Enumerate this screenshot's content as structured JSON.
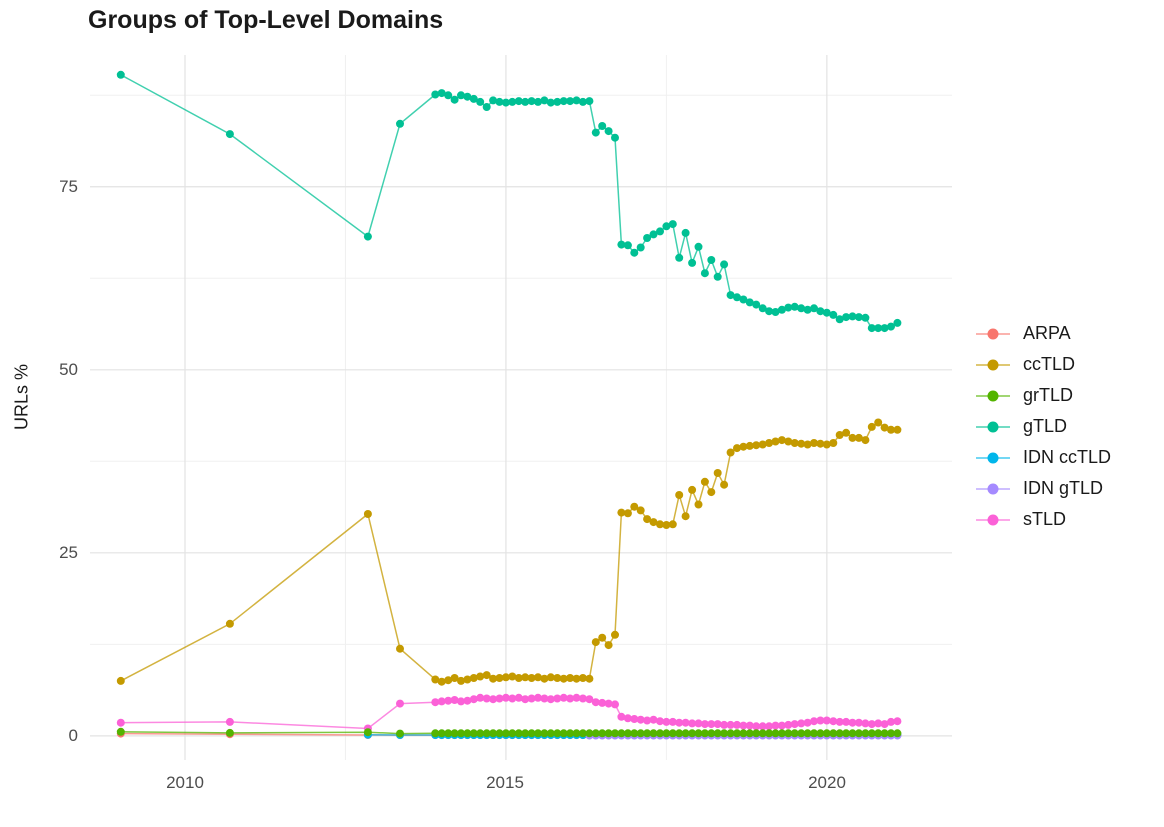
{
  "chart_data": {
    "type": "line",
    "title": "Groups of Top-Level Domains",
    "xlabel": "",
    "ylabel": "URLs %",
    "x_ticks": [
      2010,
      2015,
      2020
    ],
    "x_tick_labels": [
      "2010",
      "2015",
      "2020"
    ],
    "y_ticks": [
      0,
      25,
      50,
      75
    ],
    "y_tick_labels": [
      "0",
      "25",
      "50",
      "75"
    ],
    "xlim": [
      2008.52,
      2021.95
    ],
    "ylim": [
      -3.3,
      93.0
    ],
    "grid": {
      "x_minor": [
        2012.5,
        2017.5
      ],
      "y_minor": [
        12.5,
        37.5,
        62.5,
        87.5
      ],
      "major_color": "#e3e3e3",
      "minor_color": "#f0f0f0"
    },
    "legend_position": "right",
    "draw_order": [
      0,
      4,
      5,
      1,
      3,
      6,
      2
    ],
    "series": [
      {
        "name": "ARPA",
        "color": "#F8766D",
        "points": [
          [
            2009.0,
            0.3
          ],
          [
            2010.7,
            0.22
          ],
          [
            2012.85,
            0.12
          ],
          [
            2013.35,
            0.1
          ]
        ],
        "flat": {
          "from": 2013.9,
          "to": 2021.1,
          "step": 0.1,
          "y": 0.1
        }
      },
      {
        "name": "ccTLD",
        "color": "#C49A00",
        "points": [
          [
            2009.0,
            7.5
          ],
          [
            2010.7,
            15.3
          ],
          [
            2012.85,
            30.3
          ],
          [
            2013.35,
            11.9
          ],
          [
            2013.9,
            7.7
          ],
          [
            2014.0,
            7.4
          ],
          [
            2014.1,
            7.6
          ],
          [
            2014.2,
            7.9
          ],
          [
            2014.3,
            7.5
          ],
          [
            2014.4,
            7.7
          ],
          [
            2014.5,
            7.9
          ],
          [
            2014.6,
            8.1
          ],
          [
            2014.7,
            8.3
          ],
          [
            2014.8,
            7.8
          ],
          [
            2014.9,
            7.9
          ],
          [
            2015.0,
            8.0
          ],
          [
            2015.1,
            8.1
          ],
          [
            2015.2,
            7.9
          ],
          [
            2015.3,
            8.0
          ],
          [
            2015.4,
            7.9
          ],
          [
            2015.5,
            8.0
          ],
          [
            2015.6,
            7.8
          ],
          [
            2015.7,
            8.0
          ],
          [
            2015.8,
            7.9
          ],
          [
            2015.9,
            7.8
          ],
          [
            2016.0,
            7.9
          ],
          [
            2016.1,
            7.8
          ],
          [
            2016.2,
            7.9
          ],
          [
            2016.3,
            7.8
          ],
          [
            2016.4,
            12.8
          ],
          [
            2016.5,
            13.4
          ],
          [
            2016.6,
            12.4
          ],
          [
            2016.7,
            13.8
          ],
          [
            2016.8,
            30.5
          ],
          [
            2016.9,
            30.4
          ],
          [
            2017.0,
            31.3
          ],
          [
            2017.1,
            30.8
          ],
          [
            2017.2,
            29.6
          ],
          [
            2017.3,
            29.2
          ],
          [
            2017.4,
            28.9
          ],
          [
            2017.5,
            28.8
          ],
          [
            2017.6,
            28.9
          ],
          [
            2017.7,
            32.9
          ],
          [
            2017.8,
            30.0
          ],
          [
            2017.9,
            33.6
          ],
          [
            2018.0,
            31.6
          ],
          [
            2018.1,
            34.7
          ],
          [
            2018.2,
            33.3
          ],
          [
            2018.3,
            35.9
          ],
          [
            2018.4,
            34.3
          ],
          [
            2018.5,
            38.7
          ],
          [
            2018.6,
            39.3
          ],
          [
            2018.7,
            39.5
          ],
          [
            2018.8,
            39.6
          ],
          [
            2018.9,
            39.7
          ],
          [
            2019.0,
            39.8
          ],
          [
            2019.1,
            40.0
          ],
          [
            2019.2,
            40.2
          ],
          [
            2019.3,
            40.4
          ],
          [
            2019.4,
            40.2
          ],
          [
            2019.5,
            40.0
          ],
          [
            2019.6,
            39.9
          ],
          [
            2019.7,
            39.8
          ],
          [
            2019.8,
            40.0
          ],
          [
            2019.9,
            39.9
          ],
          [
            2020.0,
            39.8
          ],
          [
            2020.1,
            40.0
          ],
          [
            2020.2,
            41.1
          ],
          [
            2020.3,
            41.4
          ],
          [
            2020.4,
            40.7
          ],
          [
            2020.5,
            40.7
          ],
          [
            2020.6,
            40.4
          ],
          [
            2020.7,
            42.2
          ],
          [
            2020.8,
            42.8
          ],
          [
            2020.9,
            42.1
          ],
          [
            2021.0,
            41.8
          ],
          [
            2021.1,
            41.8
          ]
        ]
      },
      {
        "name": "grTLD",
        "color": "#53B400",
        "points": [
          [
            2009.0,
            0.55
          ],
          [
            2010.7,
            0.4
          ],
          [
            2012.85,
            0.5
          ],
          [
            2013.35,
            0.3
          ]
        ],
        "flat": {
          "from": 2013.9,
          "to": 2021.1,
          "step": 0.1,
          "y": 0.35
        }
      },
      {
        "name": "gTLD",
        "color": "#00C094",
        "points": [
          [
            2009.0,
            90.3
          ],
          [
            2010.7,
            82.2
          ],
          [
            2012.85,
            68.2
          ],
          [
            2013.35,
            83.6
          ],
          [
            2013.9,
            87.6
          ],
          [
            2014.0,
            87.8
          ],
          [
            2014.1,
            87.5
          ],
          [
            2014.2,
            86.9
          ],
          [
            2014.3,
            87.5
          ],
          [
            2014.4,
            87.3
          ],
          [
            2014.5,
            87.0
          ],
          [
            2014.6,
            86.6
          ],
          [
            2014.7,
            85.9
          ],
          [
            2014.8,
            86.8
          ],
          [
            2014.9,
            86.6
          ],
          [
            2015.0,
            86.5
          ],
          [
            2015.1,
            86.6
          ],
          [
            2015.2,
            86.7
          ],
          [
            2015.3,
            86.6
          ],
          [
            2015.4,
            86.7
          ],
          [
            2015.5,
            86.6
          ],
          [
            2015.6,
            86.8
          ],
          [
            2015.7,
            86.5
          ],
          [
            2015.8,
            86.6
          ],
          [
            2015.9,
            86.7
          ],
          [
            2016.0,
            86.7
          ],
          [
            2016.1,
            86.8
          ],
          [
            2016.2,
            86.6
          ],
          [
            2016.3,
            86.7
          ],
          [
            2016.4,
            82.4
          ],
          [
            2016.5,
            83.3
          ],
          [
            2016.6,
            82.6
          ],
          [
            2016.7,
            81.7
          ],
          [
            2016.8,
            67.1
          ],
          [
            2016.9,
            67.0
          ],
          [
            2017.0,
            66.0
          ],
          [
            2017.1,
            66.7
          ],
          [
            2017.2,
            68.0
          ],
          [
            2017.3,
            68.5
          ],
          [
            2017.4,
            68.9
          ],
          [
            2017.5,
            69.6
          ],
          [
            2017.6,
            69.9
          ],
          [
            2017.7,
            65.3
          ],
          [
            2017.8,
            68.7
          ],
          [
            2017.9,
            64.6
          ],
          [
            2018.0,
            66.8
          ],
          [
            2018.1,
            63.2
          ],
          [
            2018.2,
            65.0
          ],
          [
            2018.3,
            62.7
          ],
          [
            2018.4,
            64.4
          ],
          [
            2018.5,
            60.2
          ],
          [
            2018.6,
            59.9
          ],
          [
            2018.7,
            59.6
          ],
          [
            2018.8,
            59.2
          ],
          [
            2018.9,
            58.9
          ],
          [
            2019.0,
            58.4
          ],
          [
            2019.1,
            58.0
          ],
          [
            2019.2,
            57.9
          ],
          [
            2019.3,
            58.2
          ],
          [
            2019.4,
            58.5
          ],
          [
            2019.5,
            58.6
          ],
          [
            2019.6,
            58.4
          ],
          [
            2019.7,
            58.2
          ],
          [
            2019.8,
            58.4
          ],
          [
            2019.9,
            58.0
          ],
          [
            2020.0,
            57.8
          ],
          [
            2020.1,
            57.5
          ],
          [
            2020.2,
            56.9
          ],
          [
            2020.3,
            57.2
          ],
          [
            2020.4,
            57.3
          ],
          [
            2020.5,
            57.2
          ],
          [
            2020.6,
            57.1
          ],
          [
            2020.7,
            55.7
          ],
          [
            2020.8,
            55.7
          ],
          [
            2020.9,
            55.7
          ],
          [
            2021.0,
            55.9
          ],
          [
            2021.1,
            56.4
          ]
        ]
      },
      {
        "name": "IDN ccTLD",
        "color": "#00B6EB",
        "points": [
          [
            2012.85,
            0.15
          ],
          [
            2013.35,
            0.12
          ]
        ],
        "flat": {
          "from": 2013.9,
          "to": 2021.1,
          "step": 0.1,
          "y": 0.12
        }
      },
      {
        "name": "IDN gTLD",
        "color": "#A58AFF",
        "points": [],
        "flat": {
          "from": 2016.3,
          "to": 2021.1,
          "step": 0.1,
          "y": 0.05
        }
      },
      {
        "name": "sTLD",
        "color": "#FB61D7",
        "points": [
          [
            2009.0,
            1.8
          ],
          [
            2010.7,
            1.9
          ],
          [
            2012.85,
            1.0
          ],
          [
            2013.35,
            4.4
          ],
          [
            2013.9,
            4.6
          ],
          [
            2014.0,
            4.7
          ],
          [
            2014.1,
            4.8
          ],
          [
            2014.2,
            4.9
          ],
          [
            2014.3,
            4.7
          ],
          [
            2014.4,
            4.8
          ],
          [
            2014.5,
            5.0
          ],
          [
            2014.6,
            5.2
          ],
          [
            2014.7,
            5.1
          ],
          [
            2014.8,
            5.0
          ],
          [
            2014.9,
            5.1
          ],
          [
            2015.0,
            5.2
          ],
          [
            2015.1,
            5.1
          ],
          [
            2015.2,
            5.2
          ],
          [
            2015.3,
            5.0
          ],
          [
            2015.4,
            5.1
          ],
          [
            2015.5,
            5.2
          ],
          [
            2015.6,
            5.1
          ],
          [
            2015.7,
            5.0
          ],
          [
            2015.8,
            5.1
          ],
          [
            2015.9,
            5.2
          ],
          [
            2016.0,
            5.1
          ],
          [
            2016.1,
            5.2
          ],
          [
            2016.2,
            5.1
          ],
          [
            2016.3,
            5.0
          ],
          [
            2016.4,
            4.6
          ],
          [
            2016.5,
            4.5
          ],
          [
            2016.6,
            4.4
          ],
          [
            2016.7,
            4.3
          ],
          [
            2016.8,
            2.6
          ],
          [
            2016.9,
            2.4
          ],
          [
            2017.0,
            2.3
          ],
          [
            2017.1,
            2.2
          ],
          [
            2017.2,
            2.1
          ],
          [
            2017.3,
            2.2
          ],
          [
            2017.4,
            2.0
          ],
          [
            2017.5,
            1.9
          ],
          [
            2017.6,
            1.9
          ],
          [
            2017.7,
            1.8
          ],
          [
            2017.8,
            1.8
          ],
          [
            2017.9,
            1.7
          ],
          [
            2018.0,
            1.7
          ],
          [
            2018.1,
            1.6
          ],
          [
            2018.2,
            1.6
          ],
          [
            2018.3,
            1.6
          ],
          [
            2018.4,
            1.5
          ],
          [
            2018.5,
            1.5
          ],
          [
            2018.6,
            1.5
          ],
          [
            2018.7,
            1.4
          ],
          [
            2018.8,
            1.4
          ],
          [
            2018.9,
            1.3
          ],
          [
            2019.0,
            1.3
          ],
          [
            2019.1,
            1.3
          ],
          [
            2019.2,
            1.4
          ],
          [
            2019.3,
            1.4
          ],
          [
            2019.4,
            1.5
          ],
          [
            2019.5,
            1.6
          ],
          [
            2019.6,
            1.7
          ],
          [
            2019.7,
            1.8
          ],
          [
            2019.8,
            2.0
          ],
          [
            2019.9,
            2.1
          ],
          [
            2020.0,
            2.1
          ],
          [
            2020.1,
            2.0
          ],
          [
            2020.2,
            1.9
          ],
          [
            2020.3,
            1.9
          ],
          [
            2020.4,
            1.8
          ],
          [
            2020.5,
            1.8
          ],
          [
            2020.6,
            1.7
          ],
          [
            2020.7,
            1.6
          ],
          [
            2020.8,
            1.7
          ],
          [
            2020.9,
            1.6
          ],
          [
            2021.0,
            1.9
          ],
          [
            2021.1,
            2.0
          ]
        ]
      }
    ]
  },
  "colors": {
    "background": "#ffffff",
    "title_text": "#1a1a1a",
    "tick_text": "#4d4d4d"
  }
}
